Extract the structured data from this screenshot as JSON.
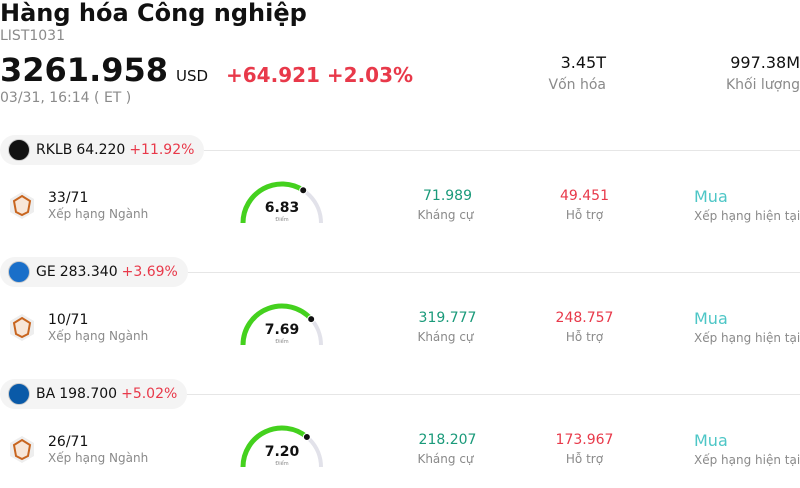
{
  "header": {
    "title": "Hàng hóa Công nghiệp",
    "code": "LIST1031",
    "price": "3261.958",
    "currency": "USD",
    "change": "+64.921",
    "change_pct": "+2.03%",
    "time": "03/31, 16:14 ( ET )",
    "stats": [
      {
        "value": "3.45T",
        "label": "Vốn hóa"
      },
      {
        "value": "997.38M",
        "label": "Khối lượng"
      }
    ]
  },
  "score_range": [
    0,
    10
  ],
  "stocks": [
    {
      "ticker": "RKLB",
      "price": "64.220",
      "change": "+11.92%",
      "rank": "33/71",
      "rank_label": "Xếp hạng Ngành",
      "score": {
        "value": 6.83,
        "label": "6.83"
      },
      "score_label": "Điểm",
      "resistance": "71.989",
      "resistance_label": "Kháng cự",
      "support": "49.451",
      "support_label": "Hỗ trợ",
      "rating": "Mua",
      "rating_label": "Xếp hạng hiện tại"
    },
    {
      "ticker": "GE",
      "price": "283.340",
      "change": "+3.69%",
      "rank": "10/71",
      "rank_label": "Xếp hạng Ngành",
      "score": {
        "value": 7.69,
        "label": "7.69"
      },
      "score_label": "Điểm",
      "resistance": "319.777",
      "resistance_label": "Kháng cự",
      "support": "248.757",
      "support_label": "Hỗ trợ",
      "rating": "Mua",
      "rating_label": "Xếp hạng hiện tại"
    },
    {
      "ticker": "BA",
      "price": "198.700",
      "change": "+5.02%",
      "rank": "26/71",
      "rank_label": "Xếp hạng Ngành",
      "score": {
        "value": 7.2,
        "label": "7.20"
      },
      "score_label": "Điểm",
      "resistance": "218.207",
      "resistance_label": "Kháng cự",
      "support": "173.967",
      "support_label": "Hỗ trợ",
      "rating": "Mua",
      "rating_label": "Xếp hạng hiện tại"
    }
  ]
}
